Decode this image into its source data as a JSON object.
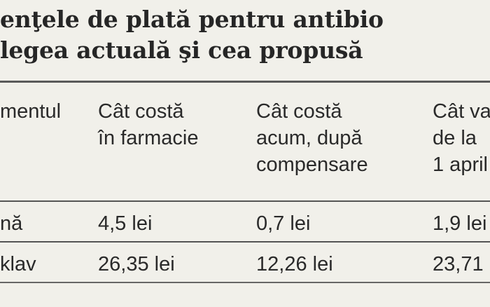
{
  "title": {
    "line1": "enţele de plată pentru antibio",
    "line2": "legea actuală şi cea propusă"
  },
  "table": {
    "headers": [
      [
        "mentul"
      ],
      [
        "Cât costă",
        "în farmacie"
      ],
      [
        "Cât costă",
        "acum, după",
        "compensare"
      ],
      [
        "Cât va",
        "de la",
        "1 april"
      ]
    ],
    "rows": [
      [
        "nă",
        "4,5 lei",
        "0,7 lei",
        "1,9 lei"
      ],
      [
        "klav",
        "26,35 lei",
        "12,26 lei",
        "23,71"
      ]
    ]
  }
}
